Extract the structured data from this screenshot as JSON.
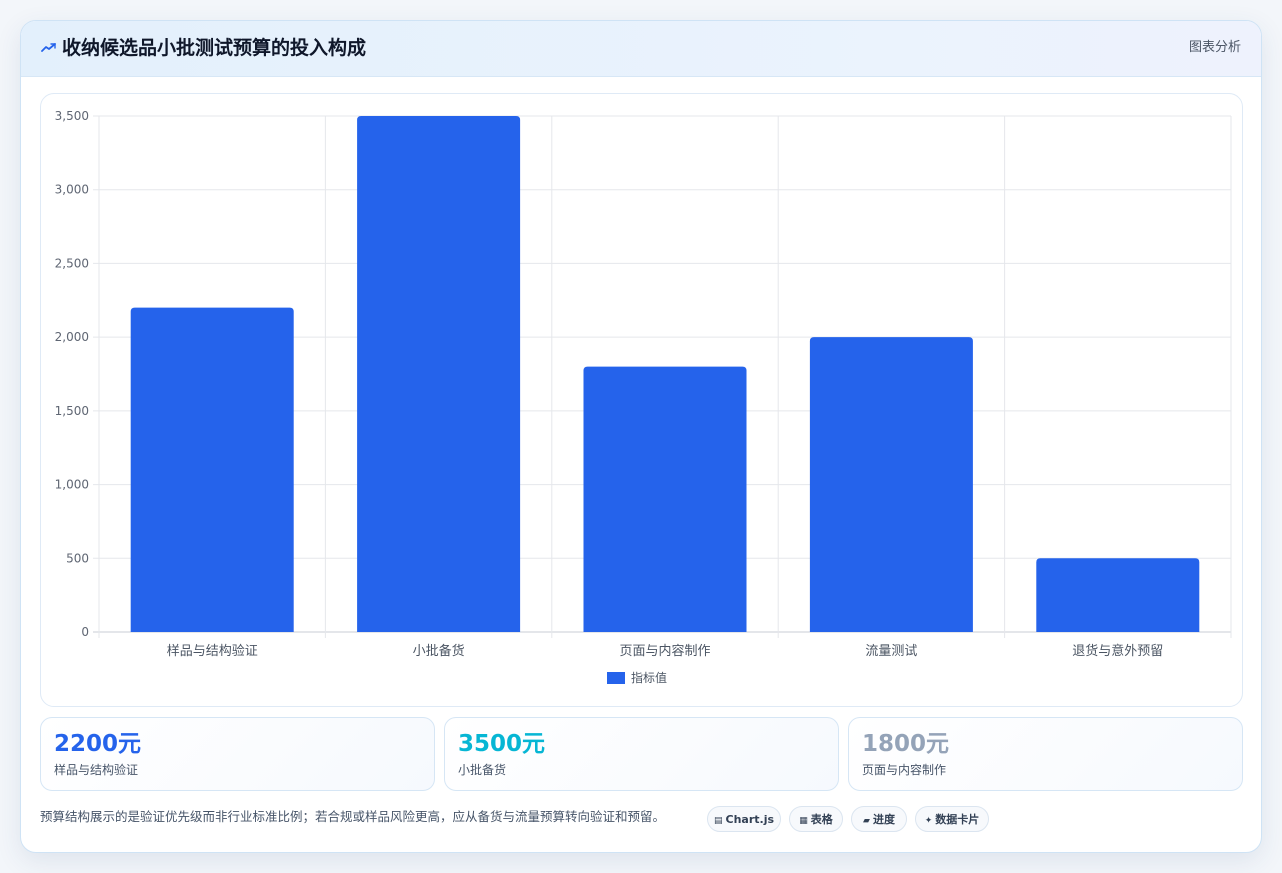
{
  "header": {
    "icon": "trend-line-icon",
    "title": "收纳候选品小批测试预算的投入构成",
    "tag": "图表分析"
  },
  "colors": {
    "bar": "#2563eb",
    "accent_blue": "#2563eb",
    "accent_cyan": "#06b6d4",
    "accent_gray": "#94a3b8"
  },
  "chart_data": {
    "type": "bar",
    "categories": [
      "样品与结构验证",
      "小批备货",
      "页面与内容制作",
      "流量测试",
      "退货与意外预留"
    ],
    "series": [
      {
        "name": "指标值",
        "values": [
          2200,
          3500,
          1800,
          2000,
          500
        ]
      }
    ],
    "y_ticks": [
      "0",
      "500",
      "1,000",
      "1,500",
      "2,000",
      "2,500",
      "3,000",
      "3,500"
    ],
    "ylim": [
      0,
      3500
    ],
    "grid": true,
    "legend": "bottom-center"
  },
  "stats": [
    {
      "value": "2200元",
      "label": "样品与结构验证",
      "color": "#2563eb"
    },
    {
      "value": "3500元",
      "label": "小批备货",
      "color": "#06b6d4"
    },
    {
      "value": "1800元",
      "label": "页面与内容制作",
      "color": "#94a3b8"
    }
  ],
  "footnote": "预算结构展示的是验证优先级而非行业标准比例；若合规或样品风险更高，应从备货与流量预算转向验证和预留。",
  "pills": [
    {
      "icon": "chart-icon",
      "glyph": "▤",
      "label": "Chart.js"
    },
    {
      "icon": "table-icon",
      "glyph": "▦",
      "label": "表格"
    },
    {
      "icon": "progress-icon",
      "glyph": "▰",
      "label": "进度"
    },
    {
      "icon": "sparkle-icon",
      "glyph": "✦",
      "label": "数据卡片"
    }
  ]
}
